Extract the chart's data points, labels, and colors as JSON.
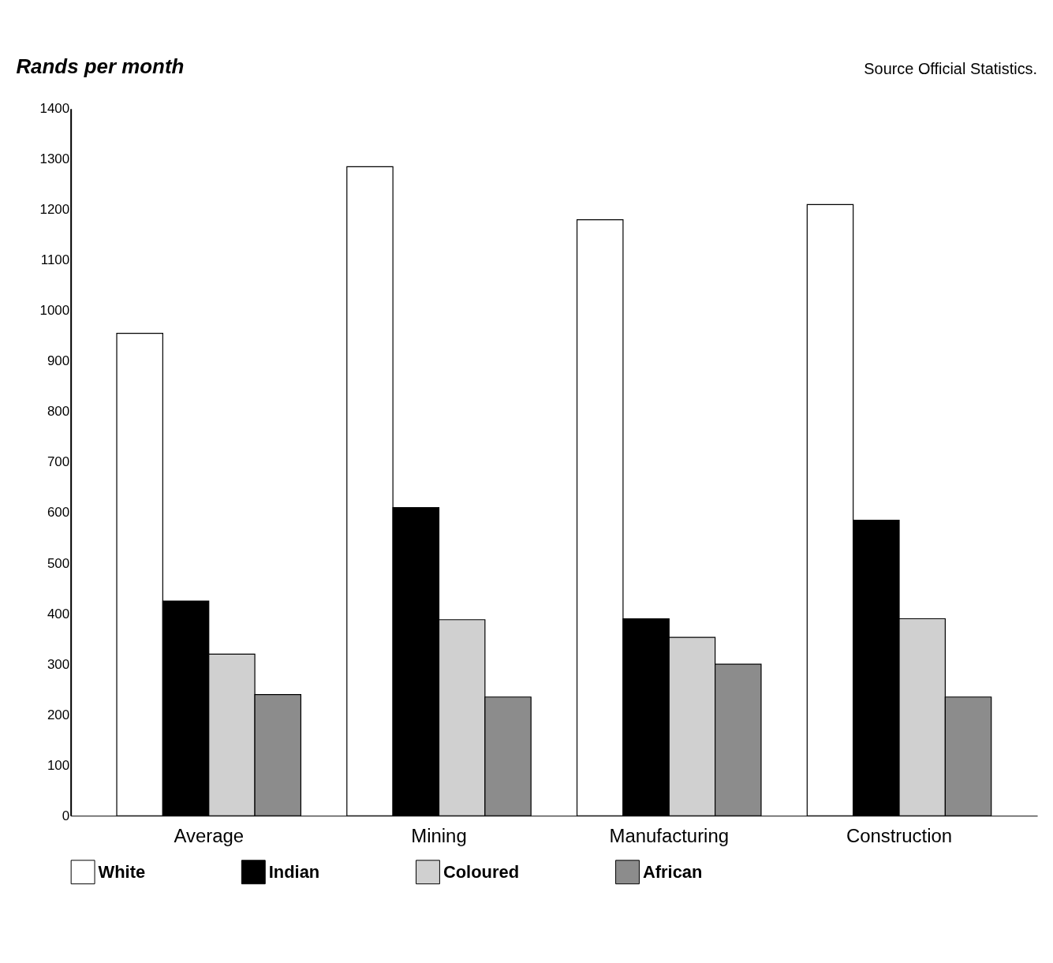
{
  "chart_data": {
    "type": "bar",
    "ylabel": "Rands per month",
    "categories": [
      "Average",
      "Mining",
      "Manufacturing",
      "Construction"
    ],
    "series": [
      {
        "name": "White",
        "color": "#ffffff",
        "values": [
          955,
          1285,
          1180,
          1210
        ]
      },
      {
        "name": "Indian",
        "color": "#000000",
        "values": [
          425,
          610,
          390,
          585
        ]
      },
      {
        "name": "Coloured",
        "color": "#d0d0d0",
        "values": [
          320,
          388,
          353,
          390
        ]
      },
      {
        "name": "African",
        "color": "#8c8c8c",
        "values": [
          240,
          235,
          300,
          235
        ]
      }
    ],
    "ylim": [
      0,
      1400
    ],
    "yticks": [
      0,
      100,
      200,
      300,
      400,
      500,
      600,
      700,
      800,
      900,
      1000,
      1100,
      1200,
      1300,
      1400
    ],
    "grid": false,
    "legend": "bottom",
    "annotations": [
      "Source Official Statistics."
    ]
  }
}
